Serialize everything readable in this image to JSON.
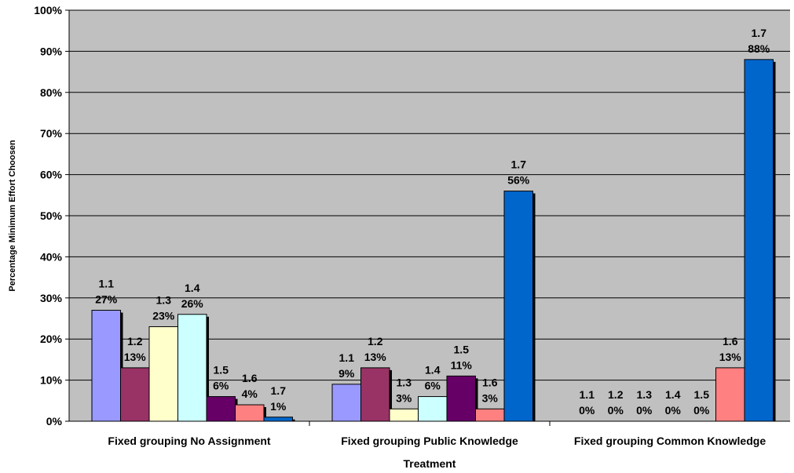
{
  "chart_data": {
    "type": "bar",
    "xlabel": "Treatment",
    "ylabel": "Percentage Minimum Effort Choosen",
    "ylim": [
      0,
      100
    ],
    "y_ticks": [
      "0%",
      "10%",
      "20%",
      "30%",
      "40%",
      "50%",
      "60%",
      "70%",
      "80%",
      "90%",
      "100%"
    ],
    "grid": true,
    "legend": "none",
    "categories": [
      "Fixed grouping No Assignment",
      "Fixed grouping Public Knowledge",
      "Fixed grouping Common Knowledge"
    ],
    "series": [
      {
        "name": "1.1",
        "color": "#9999ff",
        "values": [
          27,
          9,
          0
        ],
        "labels": [
          "27%",
          "9%",
          "0%"
        ]
      },
      {
        "name": "1.2",
        "color": "#993366",
        "values": [
          13,
          13,
          0
        ],
        "labels": [
          "13%",
          "13%",
          "0%"
        ]
      },
      {
        "name": "1.3",
        "color": "#ffffcc",
        "values": [
          23,
          3,
          0
        ],
        "labels": [
          "23%",
          "3%",
          "0%"
        ]
      },
      {
        "name": "1.4",
        "color": "#ccffff",
        "values": [
          26,
          6,
          0
        ],
        "labels": [
          "26%",
          "6%",
          "0%"
        ]
      },
      {
        "name": "1.5",
        "color": "#660066",
        "values": [
          6,
          11,
          0
        ],
        "labels": [
          "6%",
          "11%",
          "0%"
        ]
      },
      {
        "name": "1.6",
        "color": "#ff8080",
        "values": [
          4,
          3,
          13
        ],
        "labels": [
          "4%",
          "3%",
          "13%"
        ]
      },
      {
        "name": "1.7",
        "color": "#0066cc",
        "values": [
          1,
          56,
          88
        ],
        "labels": [
          "1%",
          "56%",
          "88%"
        ]
      }
    ],
    "plot_background": "#c0c0c0"
  }
}
